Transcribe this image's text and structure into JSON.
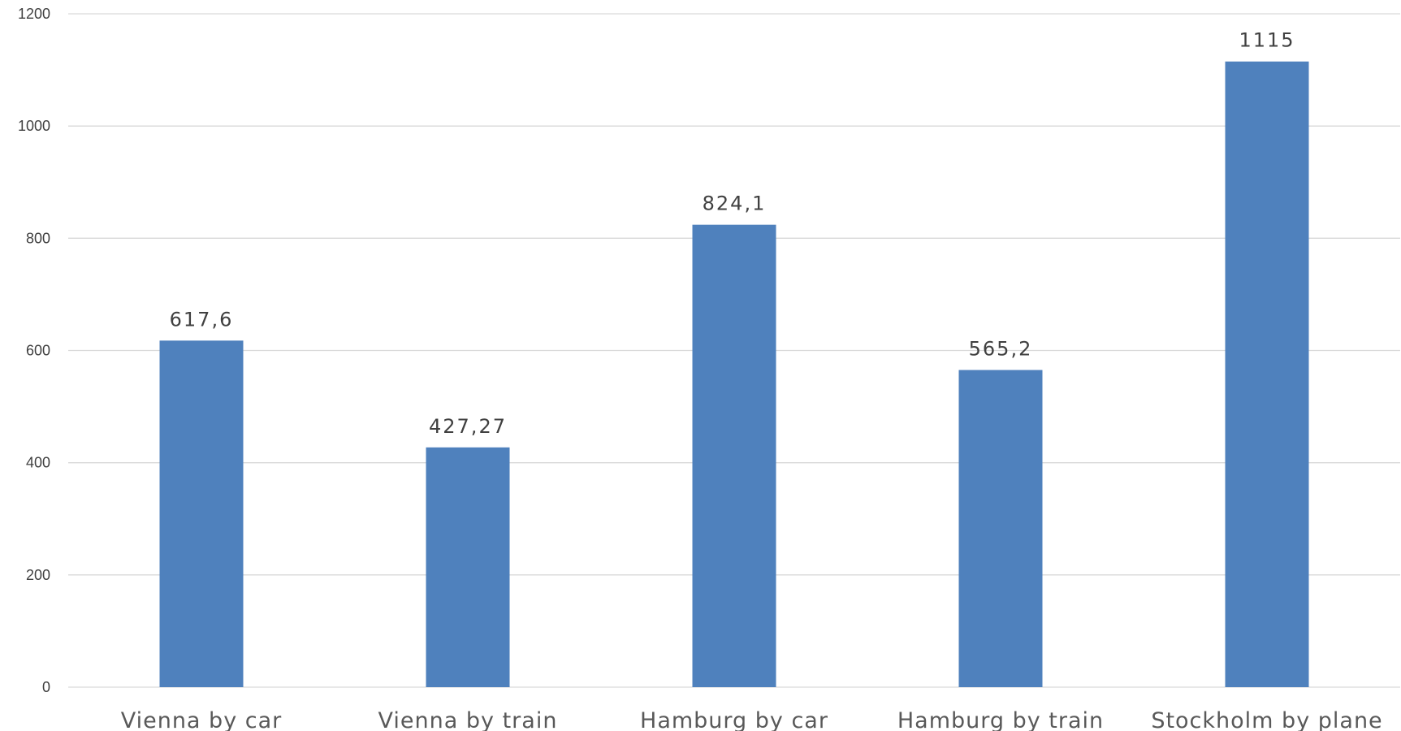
{
  "colors": {
    "bar": "#4f81bd",
    "grid": "#d9d9d9",
    "text": "#404040"
  },
  "chart_data": {
    "type": "bar",
    "title": "",
    "xlabel": "",
    "ylabel": "",
    "ylim": [
      0,
      1200
    ],
    "yticks": [
      0,
      200,
      400,
      600,
      800,
      1000,
      1200
    ],
    "ytick_labels": [
      "0",
      "200",
      "400",
      "600",
      "800",
      "1000",
      "1200"
    ],
    "grid": true,
    "legend": "none",
    "categories": [
      "Vienna by car",
      "Vienna by train",
      "Hamburg by car",
      "Hamburg by train",
      "Stockholm by plane"
    ],
    "values": [
      617.6,
      427.27,
      824.1,
      565.2,
      1115
    ],
    "data_labels": [
      "617,6",
      "427,27",
      "824,1",
      "565,2",
      "1115"
    ]
  }
}
